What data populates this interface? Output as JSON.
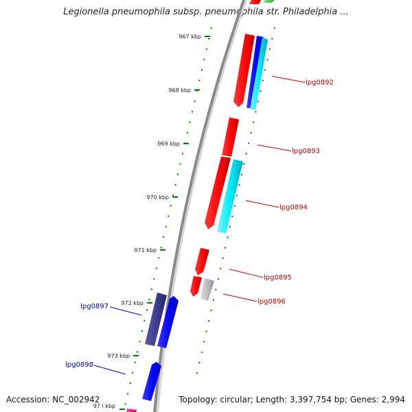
{
  "header": {
    "title": "Legionella pneumophila subsp. pneumophila str. Philadelphia ..."
  },
  "footer": {
    "accession": "Accession: NC_002942",
    "summary": "Topology: circular; Length: 3,397,754 bp; Genes: 2,994"
  },
  "ruler": {
    "ticks": [
      {
        "label": "967 kbp"
      },
      {
        "label": "968 kbp"
      },
      {
        "label": "969 kbp"
      },
      {
        "label": "970 kbp"
      },
      {
        "label": "971 kbp"
      },
      {
        "label": "972 kbp"
      },
      {
        "label": "973 kbp"
      },
      {
        "label": "97·i kbp"
      }
    ]
  },
  "genes": [
    {
      "id": "lpg0892",
      "label": "lpg0892",
      "color": "#cc0000"
    },
    {
      "id": "lpg0893",
      "label": "lpg0893",
      "color": "#cc0000"
    },
    {
      "id": "lpg0894",
      "label": "lpg0894",
      "color": "#cc0000"
    },
    {
      "id": "lpg0895",
      "label": "lpg0895",
      "color": "#cc0000"
    },
    {
      "id": "lpg0896",
      "label": "lpg0896",
      "color": "#cc0000"
    },
    {
      "id": "lpg0897",
      "label": "lpg0897",
      "color": "#0000cc"
    },
    {
      "id": "lpg0898",
      "label": "lpg0898",
      "color": "#0000cc"
    }
  ],
  "colors": {
    "forward_cds": "#ff0000",
    "reverse_cds": "#0000ff",
    "cyan_feature": "#00e5ee",
    "grey_feature": "#bbbbbb",
    "navy_feature": "#3b3b8f",
    "magenta_feature": "#e0147a",
    "green_feature": "#33cc33",
    "backbone": "#888888",
    "ruler_tick": "#008000"
  }
}
